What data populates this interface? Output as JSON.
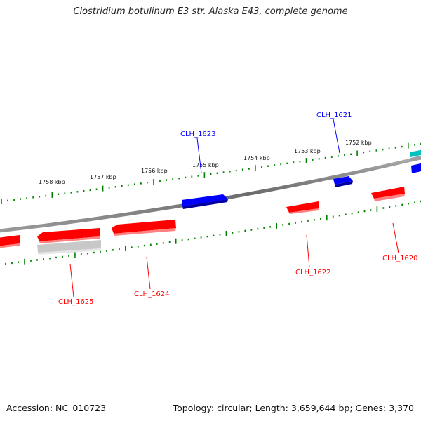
{
  "title": "Clostridium botulinum E3 str. Alaska E43, complete genome",
  "footer": {
    "accession": "Accession: NC_010723",
    "summary": "Topology: circular; Length: 3,659,644 bp; Genes: 3,370"
  },
  "scale": {
    "labels": [
      "1752 kbp",
      "1753 kbp",
      "1754 kbp",
      "1755 kbp",
      "1756 kbp",
      "1757 kbp",
      "1758 kbp"
    ]
  },
  "genes": [
    {
      "label": "CLH_1621",
      "strand": "forward",
      "color": "#0000ff"
    },
    {
      "label": "CLH_1623",
      "strand": "forward",
      "color": "#0000ff"
    },
    {
      "label": "CLH_1620",
      "strand": "reverse",
      "color": "#ff0000"
    },
    {
      "label": "CLH_1622",
      "strand": "reverse",
      "color": "#ff0000"
    },
    {
      "label": "CLH_1624",
      "strand": "reverse",
      "color": "#ff0000"
    },
    {
      "label": "CLH_1625",
      "strand": "reverse",
      "color": "#ff0000"
    }
  ],
  "colors": {
    "forward": "#0000ff",
    "reverse": "#ff0000",
    "backbone": "#808080",
    "ticks": "#008000",
    "pseudo": "#c0c0c0",
    "rna": "#00c0c0"
  }
}
